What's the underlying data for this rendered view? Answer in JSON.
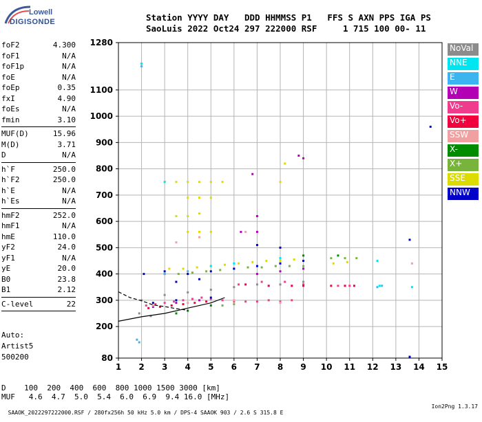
{
  "logo": {
    "line1": "Lowell",
    "line2": "DIGISONDE"
  },
  "header": {
    "line1": "Station YYYY DAY   DDD HHMMSS P1   FFS S AXN PPS IGA PS",
    "line2": "SaoLuis 2022 Oct24 297 222000 RSF     1 715 100 00- 11"
  },
  "params_group1": [
    {
      "name": "foF2",
      "value": "4.300"
    },
    {
      "name": "foF1",
      "value": "N/A"
    },
    {
      "name": "foF1p",
      "value": "N/A"
    },
    {
      "name": "foE",
      "value": "N/A"
    },
    {
      "name": "foEp",
      "value": "0.35"
    },
    {
      "name": "fxI",
      "value": "4.90"
    },
    {
      "name": "foEs",
      "value": "N/A"
    },
    {
      "name": "fmin",
      "value": "3.10"
    }
  ],
  "params_group2": [
    {
      "name": "MUF(D)",
      "value": "15.96"
    },
    {
      "name": "M(D)",
      "value": "3.71"
    },
    {
      "name": "D",
      "value": "N/A"
    }
  ],
  "params_group3": [
    {
      "name": "h`F",
      "value": "250.0"
    },
    {
      "name": "h`F2",
      "value": "250.0"
    },
    {
      "name": "h`E",
      "value": "N/A"
    },
    {
      "name": "h`Es",
      "value": "N/A"
    }
  ],
  "params_group4": [
    {
      "name": "hmF2",
      "value": "252.0"
    },
    {
      "name": "hmF1",
      "value": "N/A"
    },
    {
      "name": "hmE",
      "value": "110.0"
    },
    {
      "name": "yF2",
      "value": "24.0"
    },
    {
      "name": "yF1",
      "value": "N/A"
    },
    {
      "name": "yE",
      "value": "20.0"
    },
    {
      "name": "B0",
      "value": "23.8"
    },
    {
      "name": "B1",
      "value": "2.12"
    }
  ],
  "params_group5": [
    {
      "name": "C-level",
      "value": "22"
    }
  ],
  "auto": {
    "line1": "Auto:",
    "line2": "Artist5",
    "line3": "500200"
  },
  "dmuf": {
    "d_row": "D    100  200  400  600  800 1000 1500 3000 [km]",
    "muf_row": "MUF   4.6  4.7  5.0  5.4  6.0  6.9  9.4 16.0 [MHz]"
  },
  "footer": {
    "left": "SAAOK_2022297222000.RSF / 280fx256h 50 kHz 5.0 km / DPS-4 SAAOK 903 / 2.6 S 315.8 E",
    "right": "Ion2Png 1.3.17"
  },
  "legend": [
    {
      "label": "NoVal",
      "color": "#8c8c8c"
    },
    {
      "label": "NNE",
      "color": "#00e6f0"
    },
    {
      "label": "E",
      "color": "#3cb4f0"
    },
    {
      "label": "W",
      "color": "#b400b4"
    },
    {
      "label": "Vo-",
      "color": "#f03c8c"
    },
    {
      "label": "Vo+",
      "color": "#f0003c"
    },
    {
      "label": "SSW",
      "color": "#f0a0a0"
    },
    {
      "label": "X-",
      "color": "#008c00"
    },
    {
      "label": "X+",
      "color": "#78b43c"
    },
    {
      "label": "SSE",
      "color": "#dcdc00"
    },
    {
      "label": "NNW",
      "color": "#0000c8"
    }
  ],
  "chart_data": {
    "type": "scatter",
    "title": "",
    "xlabel": "",
    "ylabel": "",
    "xlim": [
      1,
      15
    ],
    "ylim": [
      80,
      1280
    ],
    "x_ticks": [
      "1",
      "2",
      "3",
      "4",
      "5",
      "6",
      "7",
      "8",
      "9",
      "10",
      "11",
      "12",
      "13",
      "14",
      "15"
    ],
    "y_ticks": [
      "80",
      "200",
      "300",
      "400",
      "500",
      "600",
      "700",
      "800",
      "900",
      "1000",
      "1100",
      "1280"
    ],
    "grid": true,
    "series": [
      {
        "name": "Vo-",
        "color": "#f03c8c",
        "points": [
          [
            2.2,
            280
          ],
          [
            2.6,
            285
          ],
          [
            3.0,
            290
          ],
          [
            3.4,
            295
          ],
          [
            3.8,
            300
          ],
          [
            4.2,
            305
          ],
          [
            4.6,
            310
          ],
          [
            5.0,
            305
          ],
          [
            5.5,
            300
          ],
          [
            6.0,
            295
          ],
          [
            6.5,
            295
          ],
          [
            7.0,
            295
          ],
          [
            7.5,
            300
          ],
          [
            8.0,
            295
          ],
          [
            8.5,
            300
          ],
          [
            6.2,
            360
          ],
          [
            7.2,
            370
          ],
          [
            8.2,
            370
          ],
          [
            9.0,
            360
          ],
          [
            10.5,
            355
          ],
          [
            11.0,
            355
          ]
        ]
      },
      {
        "name": "Vo+",
        "color": "#f0003c",
        "points": [
          [
            2.3,
            270
          ],
          [
            2.8,
            275
          ],
          [
            3.3,
            280
          ],
          [
            3.8,
            285
          ],
          [
            4.3,
            290
          ],
          [
            4.8,
            295
          ],
          [
            6.5,
            360
          ],
          [
            7.5,
            355
          ],
          [
            8.5,
            355
          ],
          [
            9.0,
            355
          ],
          [
            10.2,
            355
          ],
          [
            10.8,
            355
          ],
          [
            11.2,
            355
          ]
        ]
      },
      {
        "name": "W",
        "color": "#b400b4",
        "points": [
          [
            2.5,
            275
          ],
          [
            3.5,
            290
          ],
          [
            4.5,
            300
          ],
          [
            6.8,
            780
          ],
          [
            7.0,
            620
          ],
          [
            8.8,
            850
          ],
          [
            9.0,
            840
          ],
          [
            7.0,
            400
          ],
          [
            8.0,
            410
          ],
          [
            9.0,
            420
          ],
          [
            6.3,
            560
          ],
          [
            7.0,
            560
          ]
        ]
      },
      {
        "name": "X+",
        "color": "#78b43c",
        "points": [
          [
            3.0,
            400
          ],
          [
            3.6,
            400
          ],
          [
            4.2,
            405
          ],
          [
            4.8,
            410
          ],
          [
            5.4,
            415
          ],
          [
            6.0,
            420
          ],
          [
            6.6,
            425
          ],
          [
            7.2,
            425
          ],
          [
            7.8,
            430
          ],
          [
            8.4,
            430
          ],
          [
            9.0,
            430
          ],
          [
            10.2,
            460
          ],
          [
            10.8,
            460
          ],
          [
            11.3,
            460
          ],
          [
            5.5,
            280
          ],
          [
            6.0,
            285
          ]
        ]
      },
      {
        "name": "X-",
        "color": "#008c00",
        "points": [
          [
            3.5,
            250
          ],
          [
            4.0,
            260
          ],
          [
            5.0,
            280
          ],
          [
            8.0,
            460
          ],
          [
            9.0,
            470
          ],
          [
            10.5,
            470
          ]
        ]
      },
      {
        "name": "SSE",
        "color": "#dcdc00",
        "points": [
          [
            3.0,
            750
          ],
          [
            3.5,
            750
          ],
          [
            4.0,
            750
          ],
          [
            4.5,
            750
          ],
          [
            5.0,
            750
          ],
          [
            5.5,
            750
          ],
          [
            4.0,
            690
          ],
          [
            4.5,
            690
          ],
          [
            5.0,
            690
          ],
          [
            3.5,
            620
          ],
          [
            4.0,
            620
          ],
          [
            4.5,
            630
          ],
          [
            4.0,
            560
          ],
          [
            4.5,
            560
          ],
          [
            5.0,
            560
          ],
          [
            3.2,
            420
          ],
          [
            3.8,
            420
          ],
          [
            4.4,
            425
          ],
          [
            5.0,
            430
          ],
          [
            5.6,
            435
          ],
          [
            6.2,
            440
          ],
          [
            6.8,
            445
          ],
          [
            7.4,
            450
          ],
          [
            8.0,
            450
          ],
          [
            8.6,
            455
          ],
          [
            10.3,
            440
          ],
          [
            10.9,
            445
          ],
          [
            8.0,
            750
          ],
          [
            8.2,
            820
          ]
        ]
      },
      {
        "name": "NNW",
        "color": "#0000c8",
        "points": [
          [
            2.1,
            400
          ],
          [
            3.0,
            410
          ],
          [
            4.0,
            400
          ],
          [
            5.0,
            410
          ],
          [
            6.0,
            420
          ],
          [
            7.0,
            430
          ],
          [
            8.0,
            440
          ],
          [
            9.0,
            450
          ],
          [
            3.5,
            370
          ],
          [
            4.5,
            380
          ],
          [
            2.5,
            290
          ],
          [
            3.5,
            300
          ],
          [
            5.0,
            310
          ],
          [
            7.0,
            510
          ],
          [
            8.0,
            500
          ],
          [
            13.6,
            85
          ],
          [
            14.5,
            960
          ],
          [
            13.6,
            530
          ]
        ]
      },
      {
        "name": "NNE",
        "color": "#00e6f0",
        "points": [
          [
            2.0,
            1200
          ],
          [
            3.0,
            750
          ],
          [
            12.3,
            355
          ],
          [
            12.2,
            450
          ],
          [
            13.7,
            350
          ],
          [
            5.0,
            430
          ],
          [
            6.0,
            440
          ],
          [
            8.0,
            460
          ]
        ]
      },
      {
        "name": "E",
        "color": "#3cb4f0",
        "points": [
          [
            2.0,
            1190
          ],
          [
            3.0,
            400
          ],
          [
            4.0,
            410
          ],
          [
            12.2,
            350
          ],
          [
            12.4,
            355
          ],
          [
            1.8,
            150
          ],
          [
            1.9,
            140
          ]
        ]
      },
      {
        "name": "SSW",
        "color": "#f0a0a0",
        "points": [
          [
            2.5,
            280
          ],
          [
            4.0,
            290
          ],
          [
            6.0,
            300
          ],
          [
            8.0,
            290
          ],
          [
            13.7,
            440
          ],
          [
            3.5,
            520
          ],
          [
            4.5,
            540
          ],
          [
            6.5,
            560
          ]
        ]
      },
      {
        "name": "NoVal",
        "color": "#8c8c8c",
        "points": [
          [
            2.0,
            300
          ],
          [
            3.0,
            320
          ],
          [
            4.0,
            330
          ],
          [
            5.0,
            340
          ],
          [
            6.0,
            350
          ],
          [
            7.0,
            360
          ],
          [
            8.0,
            360
          ],
          [
            9.0,
            370
          ],
          [
            1.9,
            250
          ],
          [
            2.4,
            240
          ]
        ]
      }
    ],
    "fit_curve": {
      "name": "",
      "style": "solid",
      "points": [
        [
          1,
          220
        ],
        [
          2,
          237
        ],
        [
          3,
          250
        ],
        [
          4,
          270
        ],
        [
          5,
          290
        ],
        [
          5.6,
          310
        ]
      ]
    },
    "fit_curve_dashed": {
      "name": "",
      "style": "dashed",
      "points": [
        [
          1,
          332
        ],
        [
          1.5,
          310
        ],
        [
          2,
          298
        ],
        [
          2.5,
          282
        ],
        [
          3,
          276
        ],
        [
          3.5,
          268
        ],
        [
          4,
          262
        ]
      ]
    }
  }
}
